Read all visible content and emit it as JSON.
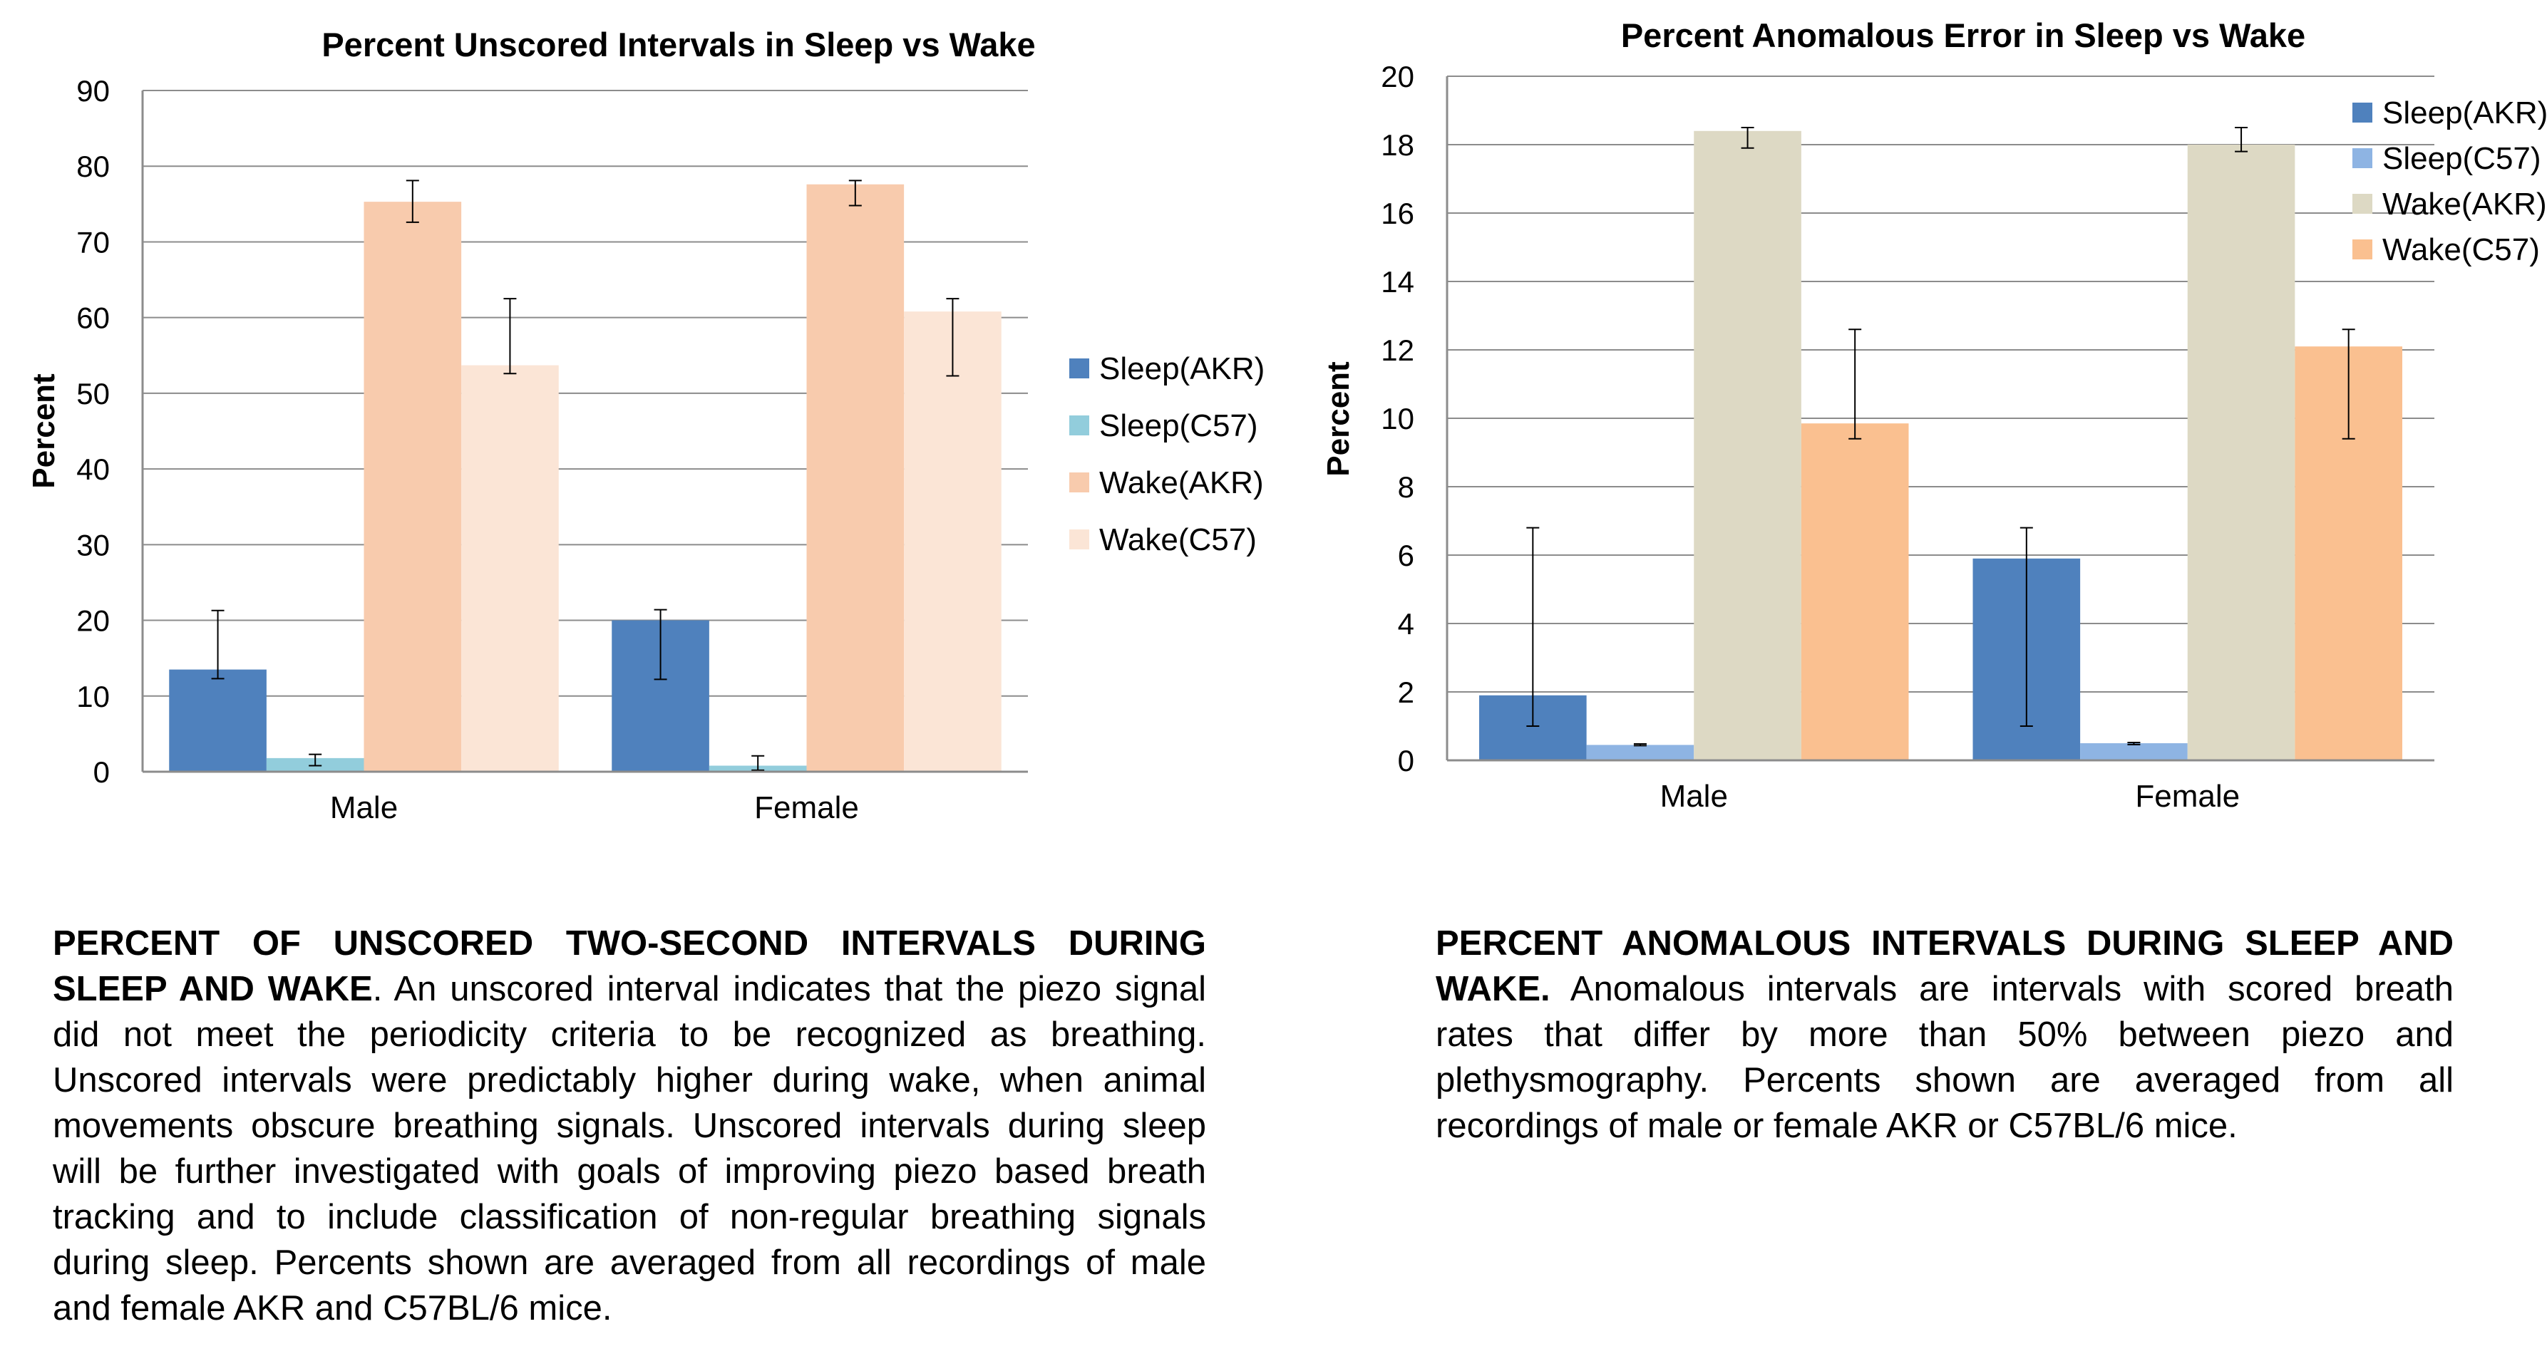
{
  "colors": {
    "grid": "#8c8c8c",
    "axis": "#8c8c8c",
    "error_bar": "#000000",
    "left_series": [
      "#4f81bd",
      "#92cddc",
      "#f8cbad",
      "#fbe5d6"
    ],
    "right_series": [
      "#4f81bd",
      "#8eb4e3",
      "#ddd9c4",
      "#fac090"
    ]
  },
  "chart_data": [
    {
      "type": "bar",
      "title": "Percent Unscored Intervals in Sleep vs Wake",
      "ylabel": "Percent",
      "xlabel": "",
      "categories": [
        "Male",
        "Female"
      ],
      "ylim": [
        0,
        90
      ],
      "yticks": [
        0,
        10,
        20,
        30,
        40,
        50,
        60,
        70,
        80,
        90
      ],
      "grid": true,
      "legend_position": "right",
      "series": [
        {
          "name": "Sleep(AKR)",
          "values": [
            13.5,
            20
          ],
          "err_low": [
            12.3,
            12.2
          ],
          "err_high": [
            21.3,
            21.4
          ]
        },
        {
          "name": "Sleep(C57)",
          "values": [
            1.8,
            0.8
          ],
          "err_low": [
            0.8,
            0.2
          ],
          "err_high": [
            2.3,
            2.1
          ]
        },
        {
          "name": "Wake(AKR)",
          "values": [
            75.3,
            77.6
          ],
          "err_low": [
            72.6,
            74.8
          ],
          "err_high": [
            78.1,
            78.1
          ]
        },
        {
          "name": "Wake(C57)",
          "values": [
            53.7,
            60.8
          ],
          "err_low": [
            52.6,
            52.3
          ],
          "err_high": [
            62.5,
            62.5
          ]
        }
      ]
    },
    {
      "type": "bar",
      "title": "Percent Anomalous Error in Sleep vs Wake",
      "ylabel": "Percent",
      "xlabel": "",
      "categories": [
        "Male",
        "Female"
      ],
      "ylim": [
        0,
        20
      ],
      "yticks": [
        0,
        2,
        4,
        6,
        8,
        10,
        12,
        14,
        16,
        18,
        20
      ],
      "grid": true,
      "legend_position": "top-right",
      "series": [
        {
          "name": "Sleep(AKR)",
          "values": [
            1.9,
            5.9
          ],
          "err_low": [
            1.0,
            1.0
          ],
          "err_high": [
            6.8,
            6.8
          ]
        },
        {
          "name": "Sleep(C57)",
          "values": [
            0.45,
            0.5
          ],
          "err_low": [
            0.43,
            0.46
          ],
          "err_high": [
            0.48,
            0.52
          ]
        },
        {
          "name": "Wake(AKR)",
          "values": [
            18.4,
            18.0
          ],
          "err_low": [
            17.9,
            17.8
          ],
          "err_high": [
            18.5,
            18.5
          ]
        },
        {
          "name": "Wake(C57)",
          "values": [
            9.85,
            12.1
          ],
          "err_low": [
            9.4,
            9.4
          ],
          "err_high": [
            12.6,
            12.6
          ]
        }
      ]
    }
  ],
  "captions": {
    "left": {
      "title": "PERCENT OF UNSCORED TWO-SECOND  INTERVALS DURING SLEEP AND WAKE",
      "body": ". An unscored interval indicates that the piezo signal did not meet the periodicity criteria to be recognized as breathing. Unscored intervals were predictably higher during wake, when animal movements obscure breathing signals. Unscored intervals during sleep will be further investigated with goals of improving piezo based breath tracking and to include classification of non-regular breathing signals during sleep. Percents shown are averaged from all recordings of male and female AKR and C57BL/6 mice."
    },
    "right": {
      "title": "PERCENT ANOMALOUS INTERVALS DURING SLEEP AND WAKE.",
      "body": " Anomalous intervals are intervals with scored breath rates that differ by more than 50% between piezo and plethysmography. Percents shown are averaged from all recordings of male or female AKR or C57BL/6 mice."
    }
  }
}
